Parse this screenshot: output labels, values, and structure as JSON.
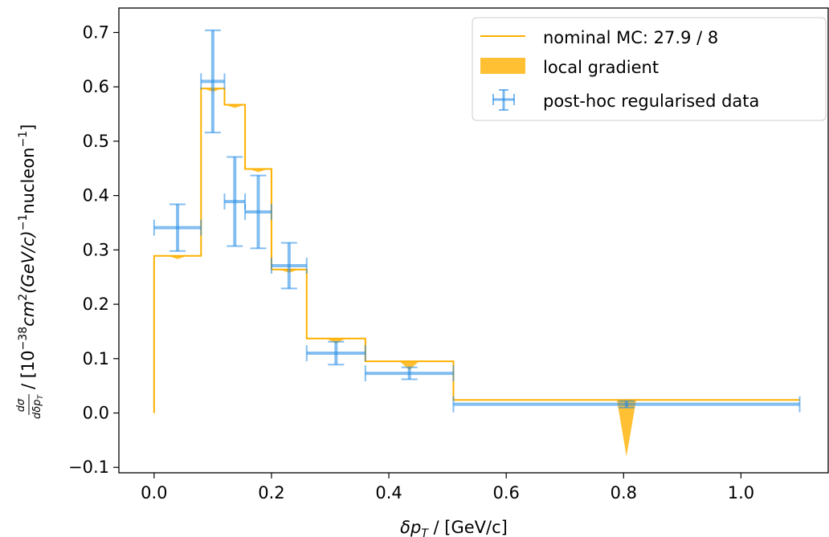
{
  "chart_data": {
    "type": "line",
    "xlabel_main": "δp",
    "xlabel_sub": "T",
    "xlabel_rest": " / [GeV/c]",
    "ylabel_frac_num": "dσ",
    "ylabel_frac_den": "dδp",
    "ylabel_frac_den_sub": "T",
    "ylabel_text_a": " / [10",
    "ylabel_sup_a": "−38",
    "ylabel_text_b": "cm",
    "ylabel_sup_b": "2",
    "ylabel_text_c": "(GeV/c)",
    "ylabel_sup_c": "−1",
    "ylabel_text_d": "nucleon",
    "ylabel_sup_d": "−1",
    "ylabel_text_e": "]",
    "xlim": [
      -0.06,
      1.15
    ],
    "ylim": [
      -0.11,
      0.745
    ],
    "x_ticks": [
      0.0,
      0.2,
      0.4,
      0.6,
      0.8,
      1.0
    ],
    "x_tick_labels": [
      "0.0",
      "0.2",
      "0.4",
      "0.6",
      "0.8",
      "1.0"
    ],
    "y_ticks": [
      -0.1,
      0.0,
      0.1,
      0.2,
      0.3,
      0.4,
      0.5,
      0.6,
      0.7
    ],
    "y_tick_labels": [
      "−0.1",
      "0.0",
      "0.1",
      "0.2",
      "0.3",
      "0.4",
      "0.5",
      "0.6",
      "0.7"
    ],
    "bin_edges": [
      0.0,
      0.08,
      0.12,
      0.155,
      0.2,
      0.26,
      0.36,
      0.51,
      1.1
    ],
    "legend_position": "top-right",
    "series": [
      {
        "name": "nominal MC: 27.9 / 8",
        "kind": "step",
        "color": "#ffb000",
        "values": [
          0.289,
          0.597,
          0.567,
          0.449,
          0.264,
          0.137,
          0.095,
          0.024
        ]
      },
      {
        "name": "local gradient",
        "kind": "band",
        "color": "#ffb000",
        "x": [
          0.04,
          0.1,
          0.1375,
          0.1775,
          0.23,
          0.31,
          0.435,
          0.805
        ],
        "values": [
          0.289,
          0.597,
          0.567,
          0.449,
          0.264,
          0.137,
          0.095,
          0.024
        ],
        "spike_low": [
          0.289,
          0.597,
          0.567,
          0.449,
          0.264,
          0.128,
          0.079,
          -0.08
        ]
      },
      {
        "name": "post-hoc regularised data",
        "kind": "errorbar",
        "color": "#1e88e5",
        "x": [
          0.04,
          0.1,
          0.1375,
          0.1775,
          0.23,
          0.31,
          0.435,
          0.805
        ],
        "xerr": [
          0.04,
          0.02,
          0.0175,
          0.0225,
          0.03,
          0.05,
          0.075,
          0.295
        ],
        "values": [
          0.341,
          0.61,
          0.389,
          0.37,
          0.271,
          0.11,
          0.073,
          0.016
        ],
        "yerr": [
          0.043,
          0.094,
          0.082,
          0.067,
          0.042,
          0.021,
          0.011,
          0.006
        ]
      }
    ]
  }
}
